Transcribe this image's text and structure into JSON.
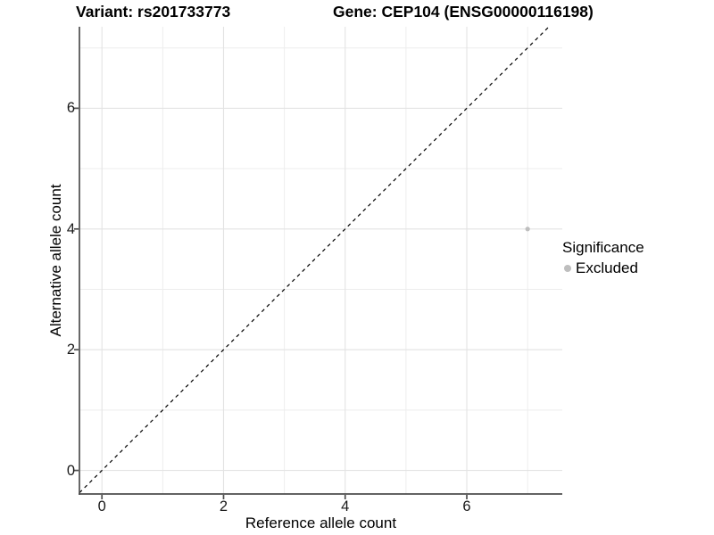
{
  "chart_data": {
    "type": "scatter",
    "titles": {
      "left": "Variant: rs201733773",
      "right": "Gene: CEP104 (ENSG00000116198)"
    },
    "xlabel": "Reference allele count",
    "ylabel": "Alternative allele count",
    "xlim": [
      -0.37,
      7.57
    ],
    "ylim": [
      -0.39,
      7.35
    ],
    "x_ticks": [
      0,
      2,
      4,
      6
    ],
    "y_ticks": [
      0,
      2,
      4,
      6
    ],
    "grid_minor_x": [
      1,
      3,
      5,
      7
    ],
    "grid_minor_y": [
      1,
      3,
      5,
      7
    ],
    "grid": "on",
    "series": [
      {
        "name": "Excluded",
        "color": "#bebebe",
        "marker": "circle",
        "points": [
          [
            7,
            4
          ]
        ]
      }
    ],
    "reference_line": {
      "kind": "identity y = x",
      "style": "dashed",
      "color": "#000000"
    },
    "legend": {
      "title": "Significance",
      "position": "right",
      "entries": [
        {
          "label": "Excluded",
          "color": "#bebebe"
        }
      ]
    }
  },
  "colors": {
    "background": "#ffffff",
    "grid_major": "#e3e3e3",
    "grid_minor": "#ededed",
    "axis": "#4d4d4d",
    "tick_text": "#1a1a1a",
    "title_text": "#000000",
    "point": "#bebebe"
  }
}
